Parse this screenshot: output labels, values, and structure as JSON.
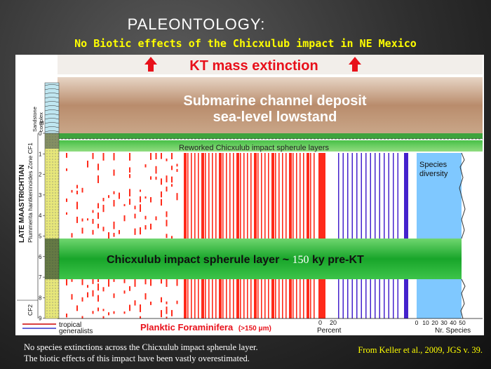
{
  "slide": {
    "title": "PALEONTOLOGY:",
    "subtitle": "No Biotic effects of the Chicxulub impact in NE Mexico",
    "bottom_lines": [
      "No species extinctions across the Chicxulub impact spherule layer.",
      "The biotic effects of this impact have been vastly overestimated."
    ],
    "citation": "From Keller et al., 2009, JGS v. 39."
  },
  "figure": {
    "kt_label": "KT mass extinction",
    "channel_line1": "Submarine channel deposit",
    "channel_line2": "sea-level lowstand",
    "reworked_label": "Reworked Chicxulub impact spherule layers",
    "spherule_label_pre": "Chicxulub impact spherule layer ~",
    "spherule_label_num": "150",
    "spherule_label_post": "ky pre-KT",
    "species_label_1": "Species",
    "species_label_2": "diversity",
    "age_label": "LATE MAASTRICHTIAN",
    "zone_label": "Plummerita hantkeninoides Zone CF1",
    "zone_cf2": "CF2",
    "sandstone_label_1": "Sandstone",
    "sandstone_label_2": "complex",
    "meter_unit": "m",
    "meter_ticks": [
      "0",
      "1",
      "2",
      "3",
      "4",
      "5",
      "6",
      "7",
      "8",
      "9"
    ],
    "legend_tropical": "tropical",
    "legend_generalists": "generalists",
    "legend_tropical_color": "#cc0000",
    "legend_generalists_color": "#3333cc",
    "planktic_label": "Planktic Foraminifera",
    "size_label": "(>150 μm)",
    "percent_ticks": [
      "0",
      "20"
    ],
    "percent_label": "Percent",
    "species_ticks": [
      "0",
      "10",
      "20",
      "30",
      "40",
      "50"
    ],
    "species_axis_label": "Nr. Species",
    "colors": {
      "tropical_red": "#ff2a1a",
      "generalist_purple": "#4422cc",
      "spherule_green": "#1fa02a",
      "species_blue": "#7fc8ff",
      "channel_brown": "#b08464"
    }
  }
}
